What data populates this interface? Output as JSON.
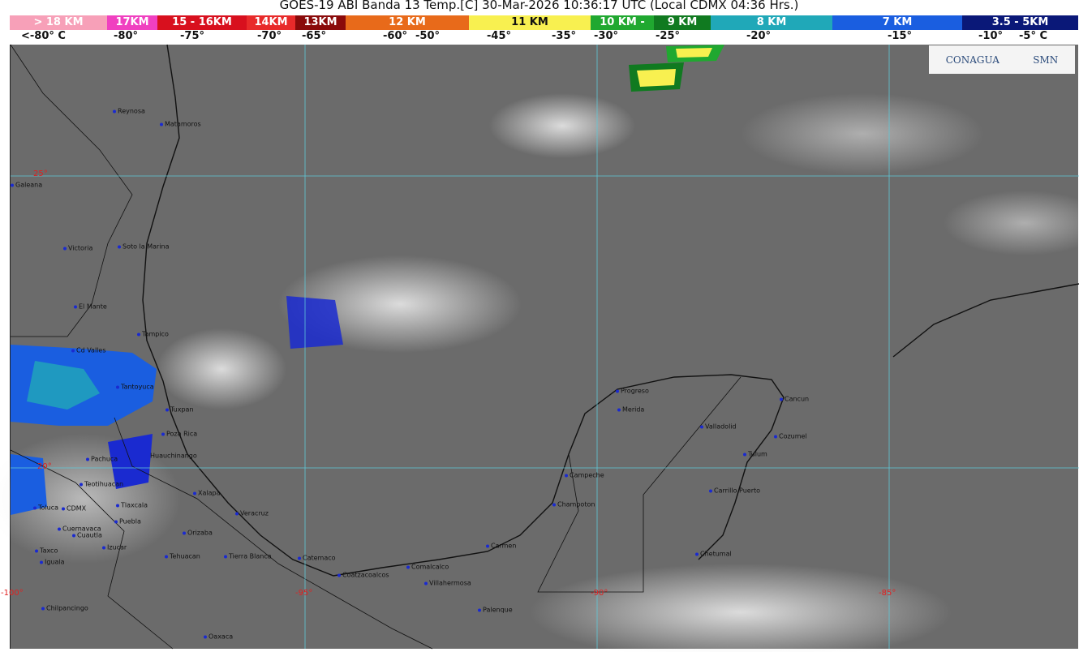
{
  "title": "GOES-19 ABI Banda 13 Temp.[C] 30-Mar-2026 10:36:17 UTC (Local CDMX  04:36 Hrs.)",
  "legend": [
    {
      "label": "> 18 KM",
      "color": "#f7a0b8"
    },
    {
      "label": "17KM",
      "color": "#f040c0"
    },
    {
      "label": "15 - 16KM",
      "color": "#d8101e"
    },
    {
      "label": "14KM",
      "color": "#e82a2a"
    },
    {
      "label": "13KM",
      "color": "#8a0a0a"
    },
    {
      "label": "12 KM",
      "color": "#e86a1a"
    },
    {
      "label": "11 KM",
      "color": "#f8f050"
    },
    {
      "label": "10 KM -",
      "color": "#20a830"
    },
    {
      "label": "9 KM",
      "color": "#107a20"
    },
    {
      "label": "8 KM",
      "color": "#20a8b8"
    },
    {
      "label": "7 KM",
      "color": "#1a5ee0"
    },
    {
      "label": "3.5 - 5KM",
      "color": "#0a1878"
    }
  ],
  "scale": [
    "<-80° C",
    "-80°",
    "-75°",
    "-70°",
    "-65°",
    "-60°",
    "-50°",
    "-45°",
    "-35°",
    "-30°",
    "-25°",
    "-20°",
    "-15°",
    "-10°",
    "-5°  C"
  ],
  "logos": {
    "left": "CONAGUA",
    "right": "SMN"
  },
  "gridlabels": [
    "25°",
    "20°",
    "-100°",
    "-95°",
    "-90°",
    "-85°"
  ],
  "cities": [
    "Reynosa",
    "Matamoros",
    "Galeana",
    "Victoria",
    "Soto la Marina",
    "El Mante",
    "Tampico",
    "Cd Valles",
    "Tantoyuca",
    "Tuxpan",
    "Poza Rica",
    "Huauchinango",
    "Pachuca",
    "Teotihuacan",
    "Xalapa",
    "Toluca",
    "CDMX",
    "Tlaxcala",
    "Veracruz",
    "Puebla",
    "Cuernavaca",
    "Cuautla",
    "Orizaba",
    "Izucar",
    "Taxco",
    "Iguala",
    "Tehuacan",
    "Tierra Blanca",
    "Catemaco",
    "Coatzacoalcos",
    "Comalcalco",
    "Villahermosa",
    "Carmen",
    "Palenque",
    "Champoton",
    "Campeche",
    "Progreso",
    "Merida",
    "Valladolid",
    "Cancun",
    "Cozumel",
    "Tulum",
    "Carrillo Puerto",
    "Chetumal",
    "Chilpancingo",
    "Oaxaca"
  ]
}
